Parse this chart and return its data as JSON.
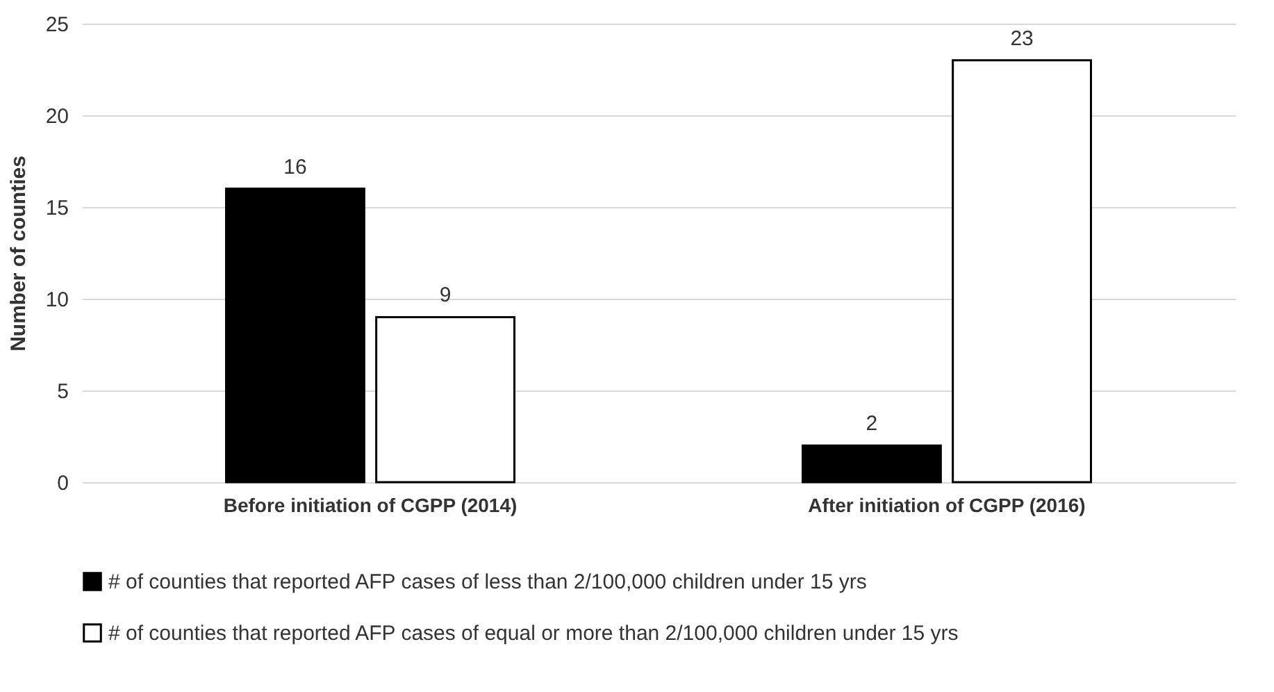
{
  "chart_data": {
    "type": "bar",
    "ylabel": "Number of counties",
    "categories": [
      "Before initiation of CGPP (2014)",
      "After initiation of CGPP (2016)"
    ],
    "series": [
      {
        "name": "# of counties that reported AFP cases of less than 2/100,000 children under 15 yrs",
        "color": "#000000",
        "values": [
          16,
          2
        ]
      },
      {
        "name": "# of counties that reported AFP cases of equal or more than 2/100,000 children under 15 yrs",
        "color": "#ffffff",
        "values": [
          9,
          23
        ]
      }
    ],
    "ylim": [
      0,
      25
    ],
    "yticks": [
      0,
      5,
      10,
      15,
      20,
      25
    ],
    "grid": "y",
    "legend": "bottom",
    "data_labels": true
  }
}
